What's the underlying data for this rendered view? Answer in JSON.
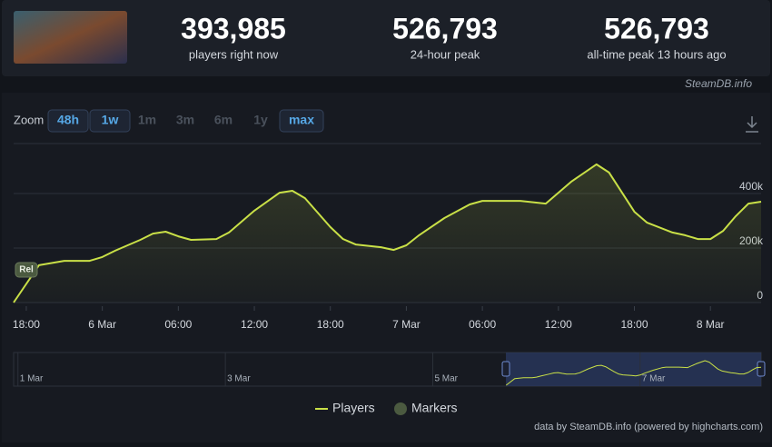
{
  "header": {
    "stats": [
      {
        "value": "393,985",
        "label": "players right now"
      },
      {
        "value": "526,793",
        "label": "24-hour peak"
      },
      {
        "value": "526,793",
        "label": "all-time peak 13 hours ago"
      }
    ],
    "watermark": "SteamDB.info"
  },
  "zoom": {
    "label": "Zoom",
    "buttons": [
      "48h",
      "1w",
      "1m",
      "3m",
      "6m",
      "1y",
      "max"
    ]
  },
  "chart_data": {
    "type": "line",
    "x": [
      -7,
      -5,
      -3,
      -1,
      0,
      1,
      3,
      4,
      5,
      6,
      7,
      9,
      10,
      12,
      14,
      15,
      16,
      18,
      19,
      20,
      22,
      23,
      24,
      25,
      27,
      29,
      30,
      33,
      35,
      37,
      39,
      40,
      42,
      43,
      45,
      46,
      47,
      48,
      49,
      50,
      51,
      52
    ],
    "series": [
      {
        "name": "Players",
        "color": "#c9e047",
        "values": [
          0,
          137000,
          153000,
          153000,
          167000,
          190000,
          230000,
          253000,
          260000,
          243000,
          230000,
          233000,
          257000,
          337000,
          403000,
          410000,
          383000,
          277000,
          233000,
          213000,
          203000,
          193000,
          210000,
          247000,
          310000,
          360000,
          373000,
          373000,
          363000,
          443000,
          507000,
          477000,
          333000,
          293000,
          257000,
          247000,
          233000,
          233000,
          263000,
          317000,
          363000,
          370000
        ]
      }
    ],
    "markers": {
      "name": "Markers",
      "color": "#4b5a40",
      "flags": [
        "Rel"
      ]
    },
    "xlim": [
      -7,
      52
    ],
    "xticks": [
      {
        "value": -6,
        "label": "18:00"
      },
      {
        "value": 0,
        "label": "6 Mar"
      },
      {
        "value": 6,
        "label": "06:00"
      },
      {
        "value": 12,
        "label": "12:00"
      },
      {
        "value": 18,
        "label": "18:00"
      },
      {
        "value": 24,
        "label": "7 Mar"
      },
      {
        "value": 30,
        "label": "06:00"
      },
      {
        "value": 36,
        "label": "12:00"
      },
      {
        "value": 42,
        "label": "18:00"
      },
      {
        "value": 48,
        "label": "8 Mar"
      }
    ],
    "ylim": [
      0,
      600000
    ],
    "yticks": [
      0,
      {
        "value": 200000,
        "label": "200k"
      },
      {
        "value": 400000,
        "label": "400k"
      }
    ],
    "grid": true
  },
  "navigator": {
    "xlim": [
      -121,
      52
    ],
    "xticks": [
      {
        "value": -120,
        "label": "1 Mar"
      },
      {
        "value": -72,
        "label": "3 Mar"
      },
      {
        "value": -24,
        "label": "5 Mar"
      },
      {
        "value": 24,
        "label": "7 Mar"
      }
    ]
  },
  "credits": "data by SteamDB.info (powered by highcharts.com)"
}
